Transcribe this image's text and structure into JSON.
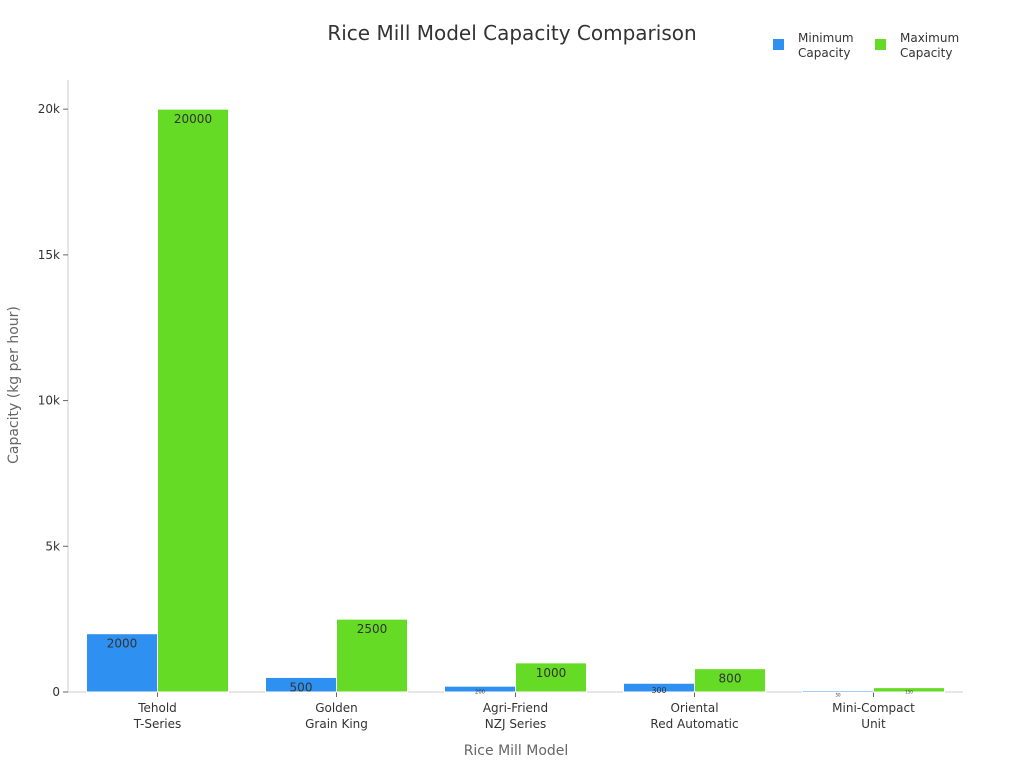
{
  "chart_data": {
    "type": "bar",
    "title": "Rice Mill Model Capacity Comparison",
    "xlabel": "Rice Mill Model",
    "ylabel": "Capacity (kg per hour)",
    "categories": [
      [
        "Tehold",
        "T-Series"
      ],
      [
        "Golden",
        "Grain King"
      ],
      [
        "Agri-Friend",
        "NZJ Series"
      ],
      [
        "Oriental",
        "Red Automatic"
      ],
      [
        "Mini-Compact",
        "Unit"
      ]
    ],
    "series": [
      {
        "name": "Minimum Capacity",
        "legend_lines": [
          "Minimum",
          "Capacity"
        ],
        "color": "#2e90f0",
        "values": [
          2000,
          500,
          200,
          300,
          50
        ]
      },
      {
        "name": "Maximum Capacity",
        "legend_lines": [
          "Maximum",
          "Capacity"
        ],
        "color": "#66db26",
        "values": [
          20000,
          2500,
          1000,
          800,
          150
        ]
      }
    ],
    "ylim": [
      0,
      21000
    ],
    "yticks": [
      0,
      5000,
      10000,
      15000,
      20000
    ],
    "ytick_labels": [
      "0",
      "5k",
      "10k",
      "15k",
      "20k"
    ],
    "legend_position": "top-right",
    "grid": false
  }
}
